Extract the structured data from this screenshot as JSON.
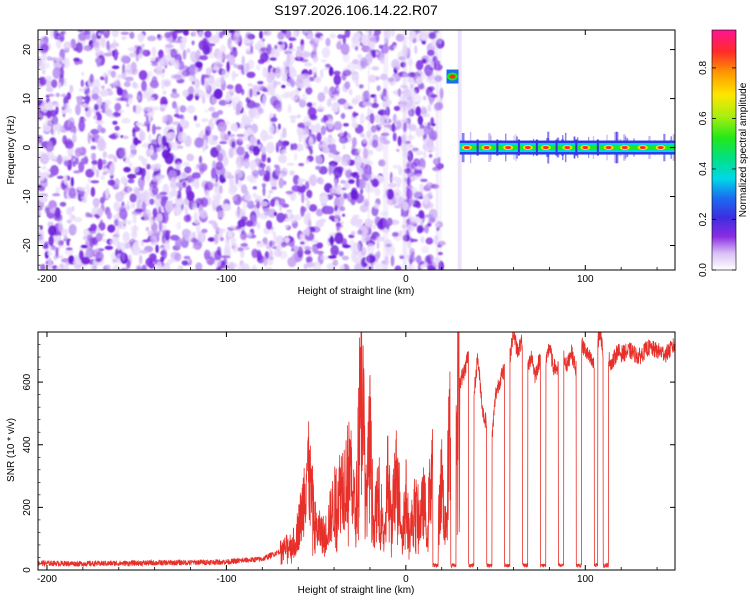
{
  "title": "S197.2026.106.14.22.R07",
  "chart_data": [
    {
      "type": "heatmap",
      "xlabel": "Height of straight line (km)",
      "ylabel": "Frequency (Hz)",
      "xlim": [
        -205,
        150
      ],
      "ylim": [
        -25,
        24
      ],
      "xticks": [
        -200,
        -100,
        0,
        100
      ],
      "xtick_labels": [
        "-200",
        "-100",
        "0",
        "100"
      ],
      "yticks": [
        -20,
        -10,
        0,
        10,
        20
      ],
      "ytick_labels": [
        "-20",
        "-10",
        "0",
        "10",
        "20"
      ],
      "features": [
        {
          "name": "noise-region",
          "x": [
            -205,
            20
          ],
          "y": [
            -25,
            24
          ],
          "amplitude": [
            0.0,
            0.25
          ]
        },
        {
          "name": "reflection-spot",
          "x": 26,
          "y": 14.5,
          "amplitude": 0.9
        },
        {
          "name": "carrier-band",
          "x": [
            30,
            150
          ],
          "y": 0,
          "amplitude": [
            0.5,
            0.95
          ]
        }
      ],
      "colorbar": {
        "label": "Normalized spectral amplitude",
        "range": [
          0.0,
          0.95
        ],
        "ticks": [
          0.0,
          0.2,
          0.4,
          0.6,
          0.8
        ],
        "tick_labels": [
          "0.0",
          "0.2",
          "0.4",
          "0.6",
          "0.8"
        ]
      }
    },
    {
      "type": "line",
      "xlabel": "Height of straight line (km)",
      "ylabel": "SNR (10 * v/v)",
      "xlim": [
        -205,
        150
      ],
      "ylim": [
        0,
        760
      ],
      "xticks": [
        -200,
        -100,
        0,
        100
      ],
      "xtick_labels": [
        "-200",
        "-100",
        "0",
        "100"
      ],
      "yticks": [
        0,
        200,
        400,
        600
      ],
      "ytick_labels": [
        "0",
        "200",
        "400",
        "600"
      ],
      "color": "#e8302a",
      "x": [
        -205,
        -180,
        -150,
        -120,
        -100,
        -80,
        -70,
        -62,
        -58,
        -55,
        -50,
        -45,
        -40,
        -35,
        -30,
        -28,
        -25,
        -22,
        -20,
        -18,
        -15,
        -12,
        -10,
        -8,
        -5,
        -2,
        0,
        2,
        5,
        8,
        10,
        12,
        15,
        18,
        20,
        22,
        25,
        28,
        30,
        33,
        35,
        38,
        40,
        43,
        45,
        48,
        50,
        52,
        55,
        58,
        60,
        62,
        65,
        68,
        70,
        72,
        75,
        78,
        80,
        82,
        85,
        88,
        90,
        92,
        95,
        98,
        100,
        102,
        105,
        108,
        110,
        112,
        115,
        118,
        120,
        125,
        130,
        135,
        140,
        145,
        150
      ],
      "y": [
        22,
        20,
        22,
        24,
        26,
        35,
        60,
        90,
        180,
        340,
        130,
        110,
        210,
        280,
        330,
        140,
        700,
        200,
        430,
        140,
        240,
        120,
        300,
        150,
        320,
        120,
        240,
        110,
        200,
        160,
        220,
        140,
        380,
        130,
        300,
        110,
        520,
        460,
        600,
        640,
        700,
        560,
        680,
        500,
        470,
        420,
        560,
        600,
        640,
        680,
        760,
        700,
        730,
        640,
        690,
        620,
        680,
        650,
        720,
        650,
        640,
        680,
        650,
        700,
        640,
        720,
        700,
        680,
        650,
        760,
        700,
        680,
        660,
        700,
        690,
        700,
        680,
        710,
        700,
        690,
        720
      ],
      "dropouts": [
        [
          15,
          18
        ],
        [
          25,
          28
        ],
        [
          35,
          38
        ],
        [
          45,
          48
        ],
        [
          55,
          58
        ],
        [
          65,
          68
        ],
        [
          75,
          78
        ],
        [
          85,
          88
        ],
        [
          95,
          98
        ],
        [
          105,
          107
        ],
        [
          110,
          113
        ]
      ]
    }
  ]
}
